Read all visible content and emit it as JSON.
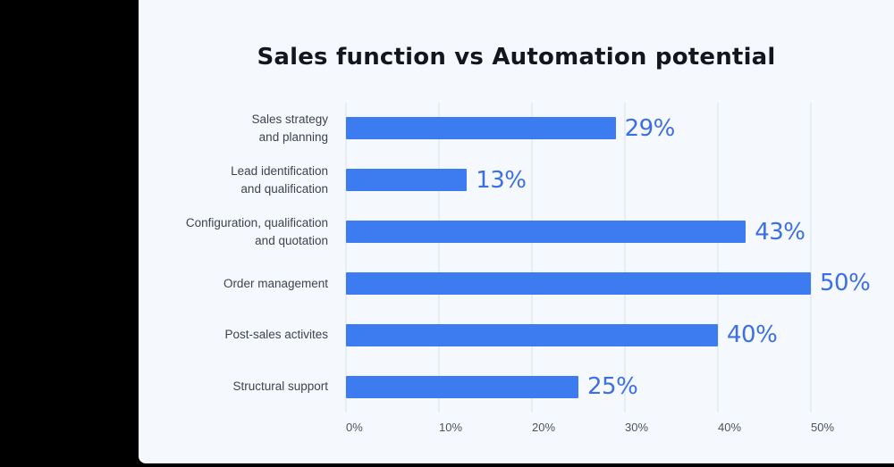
{
  "page": {
    "background_color": "#000000"
  },
  "card": {
    "background_color": "#F5F8FC"
  },
  "chart_data": {
    "type": "bar",
    "orientation": "horizontal",
    "title": "Sales function vs Automation potential",
    "categories": [
      [
        "Sales strategy",
        "and planning"
      ],
      [
        "Lead identification",
        "and qualification"
      ],
      [
        "Configuration, qualification",
        "and quotation"
      ],
      [
        "Order management"
      ],
      [
        "Post-sales activites"
      ],
      [
        "Structural support"
      ]
    ],
    "values": [
      29,
      13,
      43,
      50,
      40,
      25
    ],
    "value_labels": [
      "29%",
      "13%",
      "43%",
      "50%",
      "40%",
      "25%"
    ],
    "x_ticks": [
      "0%",
      "10%",
      "20%",
      "30%",
      "40%",
      "50%"
    ],
    "xlim": [
      0,
      50
    ],
    "xlabel": "",
    "ylabel": "",
    "grid": "vertical",
    "legend": "none",
    "colors": {
      "bar": "#3D7BF0",
      "value_label": "#3B6FE3",
      "title": "#14161D",
      "category_label": "#3E434D",
      "tick_label": "#4D535E",
      "gridline": "#E7EDF6",
      "card_bg": "#F5F8FC",
      "page_bg": "#000000"
    }
  }
}
